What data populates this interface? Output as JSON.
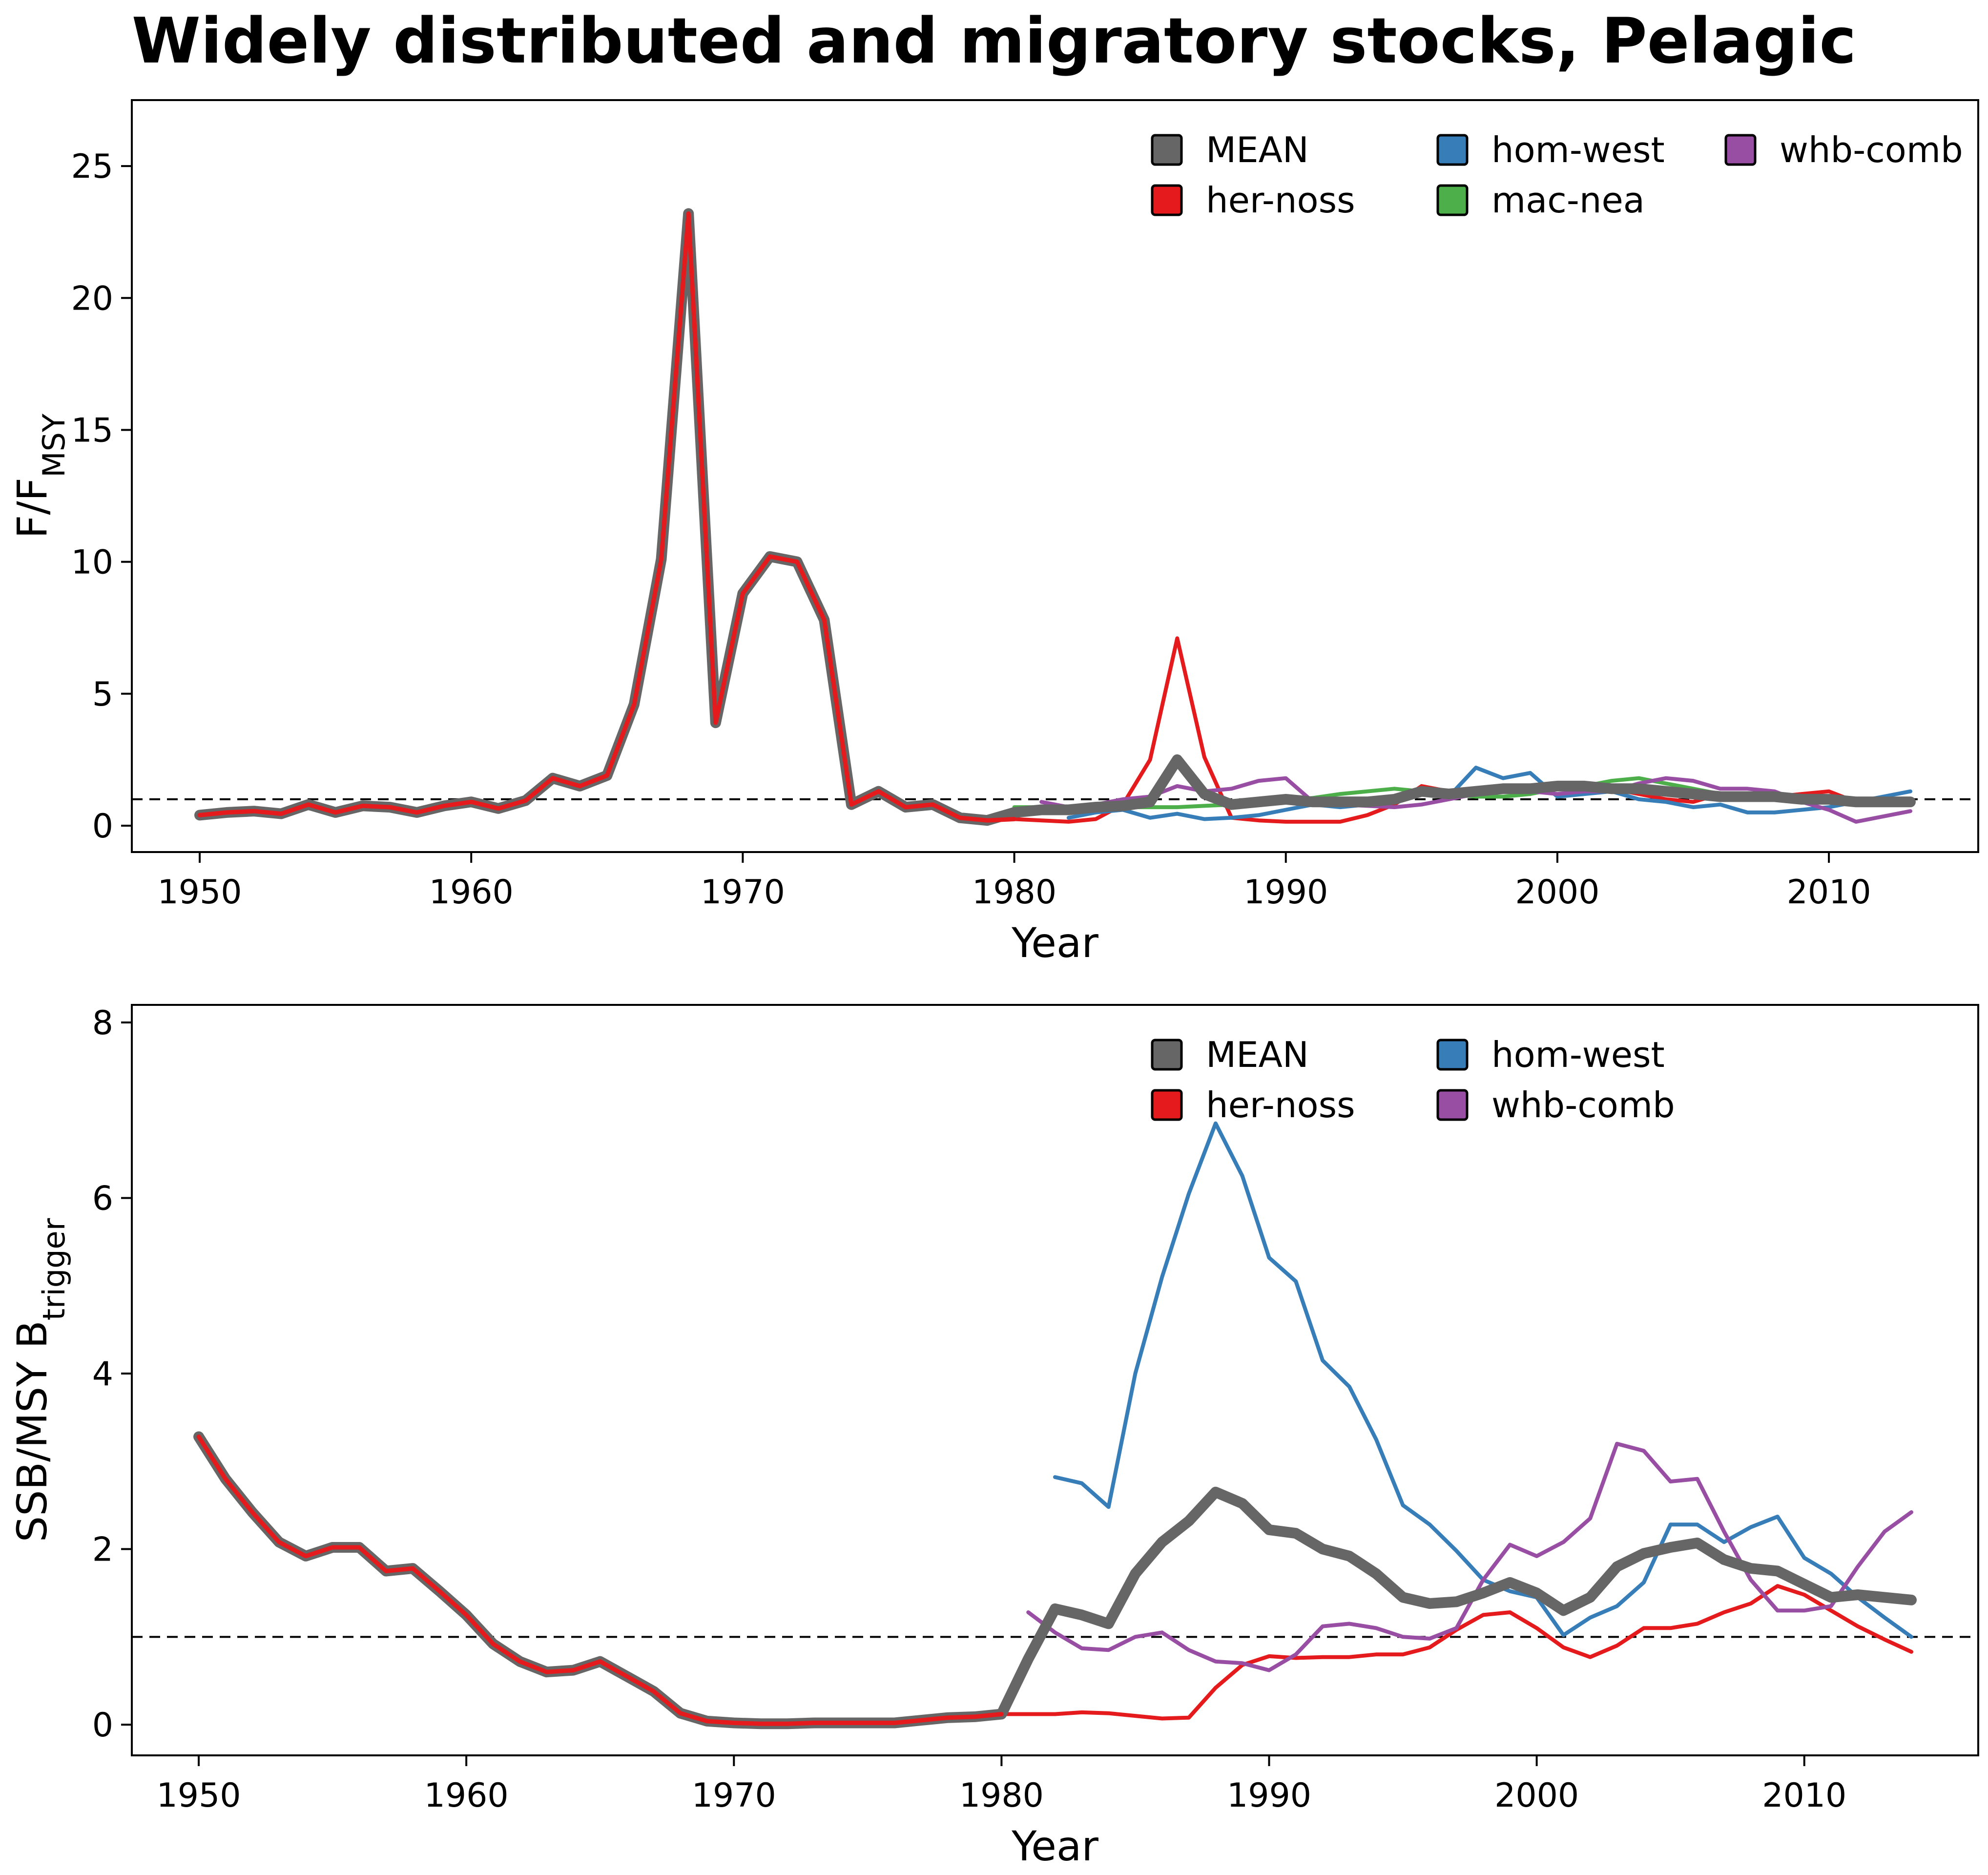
{
  "title": "Widely distributed and migratory stocks, Pelagic",
  "chart_data": [
    {
      "type": "line",
      "xlabel": "Year",
      "ylabel_main": "F/F",
      "ylabel_sub": "MSY",
      "xlim": [
        1947.5,
        2015.5
      ],
      "ylim": [
        -1,
        27.5
      ],
      "xticks": [
        1950,
        1960,
        1970,
        1980,
        1990,
        2000,
        2010
      ],
      "yticks": [
        0,
        5,
        10,
        15,
        20,
        25
      ],
      "reference_line": 1,
      "legend_columns": 3,
      "series": [
        {
          "name": "MEAN",
          "color": "#666666",
          "width": "thick",
          "x": [
            1950,
            1951,
            1952,
            1953,
            1954,
            1955,
            1956,
            1957,
            1958,
            1959,
            1960,
            1961,
            1962,
            1963,
            1964,
            1965,
            1966,
            1967,
            1968,
            1969,
            1970,
            1971,
            1972,
            1973,
            1974,
            1975,
            1976,
            1977,
            1978,
            1979,
            1980,
            1981,
            1982,
            1983,
            1984,
            1985,
            1986,
            1987,
            1988,
            1989,
            1990,
            1991,
            1992,
            1993,
            1994,
            1995,
            1996,
            1997,
            1998,
            1999,
            2000,
            2001,
            2002,
            2003,
            2004,
            2005,
            2006,
            2007,
            2008,
            2009,
            2010,
            2011,
            2012,
            2013
          ],
          "y": [
            0.4,
            0.5,
            0.55,
            0.45,
            0.8,
            0.5,
            0.75,
            0.7,
            0.5,
            0.75,
            0.9,
            0.65,
            0.95,
            1.8,
            1.5,
            1.9,
            4.6,
            10.1,
            23.2,
            3.9,
            8.8,
            10.2,
            10.0,
            7.8,
            0.8,
            1.3,
            0.7,
            0.8,
            0.3,
            0.2,
            0.5,
            0.6,
            0.6,
            0.7,
            0.75,
            0.9,
            2.5,
            1.2,
            0.8,
            0.9,
            1.0,
            0.9,
            0.9,
            0.9,
            1.0,
            1.3,
            1.2,
            1.3,
            1.4,
            1.4,
            1.5,
            1.5,
            1.4,
            1.4,
            1.3,
            1.2,
            1.1,
            1.1,
            1.1,
            1.0,
            1.0,
            0.9,
            0.9,
            0.9
          ]
        },
        {
          "name": "her-noss",
          "color": "#e41a1c",
          "width": "thin",
          "x": [
            1950,
            1951,
            1952,
            1953,
            1954,
            1955,
            1956,
            1957,
            1958,
            1959,
            1960,
            1961,
            1962,
            1963,
            1964,
            1965,
            1966,
            1967,
            1968,
            1969,
            1970,
            1971,
            1972,
            1973,
            1974,
            1975,
            1976,
            1977,
            1978,
            1979,
            1980,
            1981,
            1982,
            1983,
            1984,
            1985,
            1986,
            1987,
            1988,
            1989,
            1990,
            1991,
            1992,
            1993,
            1994,
            1995,
            1996,
            1997,
            1998,
            1999,
            2000,
            2001,
            2002,
            2003,
            2004,
            2005,
            2006,
            2007,
            2008,
            2009,
            2010,
            2011,
            2012,
            2013
          ],
          "y": [
            0.4,
            0.5,
            0.55,
            0.45,
            0.8,
            0.5,
            0.75,
            0.7,
            0.5,
            0.75,
            0.9,
            0.65,
            0.95,
            1.8,
            1.5,
            1.9,
            4.6,
            10.1,
            23.2,
            3.9,
            8.8,
            10.2,
            10.0,
            7.8,
            0.8,
            1.3,
            0.7,
            0.8,
            0.3,
            0.2,
            0.25,
            0.2,
            0.15,
            0.25,
            0.8,
            2.5,
            7.1,
            2.6,
            0.3,
            0.2,
            0.15,
            0.15,
            0.15,
            0.4,
            0.8,
            1.5,
            1.3,
            1.4,
            1.3,
            1.2,
            1.5,
            1.5,
            1.4,
            1.2,
            1.0,
            0.9,
            1.2,
            1.2,
            1.1,
            1.2,
            1.3,
            0.9,
            0.8,
            0.9
          ]
        },
        {
          "name": "hom-west",
          "color": "#377eb8",
          "width": "thin",
          "x": [
            1982,
            1983,
            1984,
            1985,
            1986,
            1987,
            1988,
            1989,
            1990,
            1991,
            1992,
            1993,
            1994,
            1995,
            1996,
            1997,
            1998,
            1999,
            2000,
            2001,
            2002,
            2003,
            2004,
            2005,
            2006,
            2007,
            2008,
            2009,
            2010,
            2011,
            2012,
            2013
          ],
          "y": [
            0.3,
            0.5,
            0.6,
            0.3,
            0.45,
            0.25,
            0.3,
            0.4,
            0.6,
            0.8,
            0.7,
            0.8,
            1.0,
            1.2,
            1.1,
            2.2,
            1.8,
            2.0,
            1.1,
            1.2,
            1.3,
            1.0,
            0.9,
            0.7,
            0.8,
            0.5,
            0.5,
            0.6,
            0.7,
            0.9,
            1.1,
            1.3
          ]
        },
        {
          "name": "mac-nea",
          "color": "#4daf4a",
          "width": "thin",
          "x": [
            1980,
            1981,
            1982,
            1983,
            1984,
            1985,
            1986,
            1987,
            1988,
            1989,
            1990,
            1991,
            1992,
            1993,
            1994,
            1995,
            1996,
            1997,
            1998,
            1999,
            2000,
            2001,
            2002,
            2003,
            2004,
            2005,
            2006,
            2007,
            2008,
            2009,
            2010,
            2011,
            2012,
            2013
          ],
          "y": [
            0.7,
            0.7,
            0.7,
            0.7,
            0.7,
            0.7,
            0.7,
            0.75,
            0.8,
            0.85,
            0.95,
            1.05,
            1.2,
            1.3,
            1.4,
            1.3,
            1.2,
            1.1,
            1.1,
            1.2,
            1.4,
            1.5,
            1.7,
            1.8,
            1.6,
            1.4,
            1.2,
            1.1,
            1.0,
            1.0,
            0.9,
            0.9,
            0.9,
            0.85
          ]
        },
        {
          "name": "whb-comb",
          "color": "#984ea3",
          "width": "thin",
          "x": [
            1981,
            1982,
            1983,
            1984,
            1985,
            1986,
            1987,
            1988,
            1989,
            1990,
            1991,
            1992,
            1993,
            1994,
            1995,
            1996,
            1997,
            1998,
            1999,
            2000,
            2001,
            2002,
            2003,
            2004,
            2005,
            2006,
            2007,
            2008,
            2009,
            2010,
            2011,
            2012,
            2013
          ],
          "y": [
            0.9,
            0.7,
            0.8,
            1.0,
            1.1,
            1.5,
            1.3,
            1.4,
            1.7,
            1.8,
            0.9,
            0.8,
            0.75,
            0.7,
            0.8,
            1.0,
            1.2,
            1.5,
            1.3,
            1.2,
            1.3,
            1.3,
            1.6,
            1.8,
            1.7,
            1.4,
            1.4,
            1.3,
            0.9,
            0.6,
            0.15,
            0.35,
            0.55
          ]
        }
      ]
    },
    {
      "type": "line",
      "xlabel": "Year",
      "ylabel_main": "SSB/MSY B",
      "ylabel_sub": "trigger",
      "xlim": [
        1947.5,
        2016.5
      ],
      "ylim": [
        -0.35,
        8.2
      ],
      "xticks": [
        1950,
        1960,
        1970,
        1980,
        1990,
        2000,
        2010
      ],
      "yticks": [
        0,
        2,
        4,
        6,
        8
      ],
      "reference_line": 1,
      "legend_columns": 2,
      "series": [
        {
          "name": "MEAN",
          "color": "#666666",
          "width": "thick",
          "x": [
            1950,
            1951,
            1952,
            1953,
            1954,
            1955,
            1956,
            1957,
            1958,
            1959,
            1960,
            1961,
            1962,
            1963,
            1964,
            1965,
            1966,
            1967,
            1968,
            1969,
            1970,
            1971,
            1972,
            1973,
            1974,
            1975,
            1976,
            1977,
            1978,
            1979,
            1980,
            1981,
            1982,
            1983,
            1984,
            1985,
            1986,
            1987,
            1988,
            1989,
            1990,
            1991,
            1992,
            1993,
            1994,
            1995,
            1996,
            1997,
            1998,
            1999,
            2000,
            2001,
            2002,
            2003,
            2004,
            2005,
            2006,
            2007,
            2008,
            2009,
            2010,
            2011,
            2012,
            2013,
            2014
          ],
          "y": [
            3.28,
            2.8,
            2.42,
            2.08,
            1.92,
            2.02,
            2.02,
            1.75,
            1.78,
            1.52,
            1.25,
            0.92,
            0.72,
            0.6,
            0.62,
            0.72,
            0.55,
            0.38,
            0.13,
            0.04,
            0.02,
            0.01,
            0.01,
            0.02,
            0.02,
            0.02,
            0.02,
            0.05,
            0.08,
            0.09,
            0.12,
            0.75,
            1.32,
            1.25,
            1.15,
            1.72,
            2.08,
            2.32,
            2.65,
            2.52,
            2.22,
            2.18,
            2.0,
            1.92,
            1.72,
            1.45,
            1.38,
            1.4,
            1.5,
            1.62,
            1.5,
            1.3,
            1.45,
            1.8,
            1.95,
            2.02,
            2.07,
            1.88,
            1.78,
            1.75,
            1.6,
            1.45,
            1.48,
            1.45,
            1.42
          ]
        },
        {
          "name": "her-noss",
          "color": "#e41a1c",
          "width": "thin",
          "x": [
            1950,
            1951,
            1952,
            1953,
            1954,
            1955,
            1956,
            1957,
            1958,
            1959,
            1960,
            1961,
            1962,
            1963,
            1964,
            1965,
            1966,
            1967,
            1968,
            1969,
            1970,
            1971,
            1972,
            1973,
            1974,
            1975,
            1976,
            1977,
            1978,
            1979,
            1980,
            1981,
            1982,
            1983,
            1984,
            1985,
            1986,
            1987,
            1988,
            1989,
            1990,
            1991,
            1992,
            1993,
            1994,
            1995,
            1996,
            1997,
            1998,
            1999,
            2000,
            2001,
            2002,
            2003,
            2004,
            2005,
            2006,
            2007,
            2008,
            2009,
            2010,
            2011,
            2012,
            2013,
            2014
          ],
          "y": [
            3.28,
            2.8,
            2.42,
            2.08,
            1.92,
            2.02,
            2.02,
            1.75,
            1.78,
            1.52,
            1.25,
            0.92,
            0.72,
            0.6,
            0.62,
            0.72,
            0.55,
            0.38,
            0.13,
            0.04,
            0.02,
            0.01,
            0.01,
            0.02,
            0.02,
            0.02,
            0.02,
            0.05,
            0.08,
            0.09,
            0.12,
            0.12,
            0.12,
            0.14,
            0.13,
            0.1,
            0.07,
            0.08,
            0.42,
            0.68,
            0.78,
            0.76,
            0.77,
            0.77,
            0.8,
            0.8,
            0.88,
            1.08,
            1.25,
            1.28,
            1.1,
            0.88,
            0.77,
            0.9,
            1.1,
            1.1,
            1.15,
            1.28,
            1.38,
            1.58,
            1.48,
            1.3,
            1.12,
            0.97,
            0.83
          ]
        },
        {
          "name": "hom-west",
          "color": "#377eb8",
          "width": "thin",
          "x": [
            1982,
            1983,
            1984,
            1985,
            1986,
            1987,
            1988,
            1989,
            1990,
            1991,
            1992,
            1993,
            1994,
            1995,
            1996,
            1997,
            1998,
            1999,
            2000,
            2001,
            2002,
            2003,
            2004,
            2005,
            2006,
            2007,
            2008,
            2009,
            2010,
            2011,
            2012,
            2013,
            2014
          ],
          "y": [
            2.82,
            2.75,
            2.48,
            4.0,
            5.1,
            6.05,
            6.85,
            6.25,
            5.32,
            5.05,
            4.15,
            3.85,
            3.25,
            2.5,
            2.28,
            1.98,
            1.65,
            1.52,
            1.45,
            1.02,
            1.22,
            1.35,
            1.62,
            2.28,
            2.28,
            2.08,
            2.25,
            2.37,
            1.9,
            1.72,
            1.45,
            1.22,
            1.0
          ]
        },
        {
          "name": "whb-comb",
          "color": "#984ea3",
          "width": "thin",
          "x": [
            1981,
            1982,
            1983,
            1984,
            1985,
            1986,
            1987,
            1988,
            1989,
            1990,
            1991,
            1992,
            1993,
            1994,
            1995,
            1996,
            1997,
            1998,
            1999,
            2000,
            2001,
            2002,
            2003,
            2004,
            2005,
            2006,
            2007,
            2008,
            2009,
            2010,
            2011,
            2012,
            2013,
            2014
          ],
          "y": [
            1.28,
            1.05,
            0.87,
            0.85,
            1.0,
            1.05,
            0.85,
            0.72,
            0.7,
            0.62,
            0.8,
            1.12,
            1.15,
            1.1,
            1.0,
            0.98,
            1.1,
            1.65,
            2.05,
            1.92,
            2.08,
            2.35,
            3.2,
            3.12,
            2.77,
            2.8,
            2.2,
            1.65,
            1.3,
            1.3,
            1.35,
            1.8,
            2.2,
            2.42
          ]
        }
      ]
    }
  ]
}
